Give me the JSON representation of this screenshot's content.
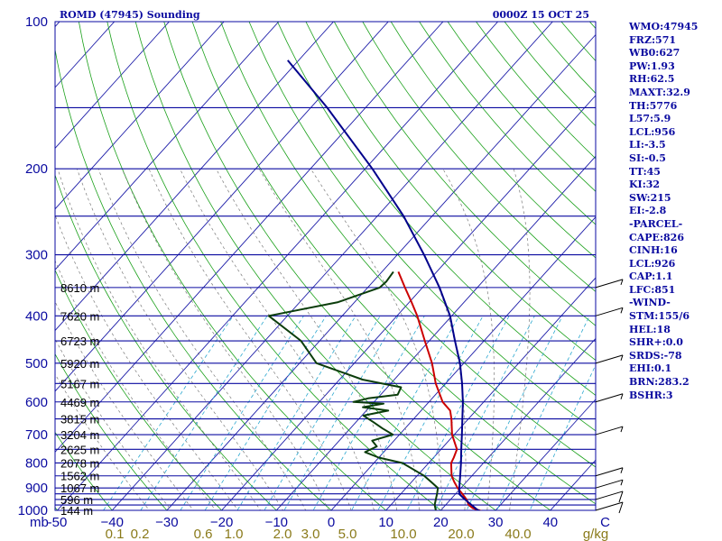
{
  "title": {
    "station": "ROMD (47945) Sounding",
    "time": "0000Z 15 OCT 25"
  },
  "indices": [
    "WMO:47945",
    "FRZ:571",
    "WB0:627",
    "PW:1.93",
    "RH:62.5",
    "MAXT:32.9",
    "TH:5776",
    "L57:5.9",
    "LCL:956",
    "LI:-3.5",
    "SI:-0.5",
    "TT:45",
    "KI:32",
    "SW:215",
    "EI:-2.8",
    "-PARCEL-",
    "CAPE:826",
    "CINH:16",
    "LCL:926",
    "CAP:1.1",
    "LFC:851",
    "-WIND-",
    "STM:155/6",
    "HEL:18",
    "SHR+:0.0",
    "SRDS:-78",
    "EHI:0.1",
    "BRN:283.2",
    "BSHR:3"
  ],
  "chart_data": {
    "type": "line",
    "subtype": "skew-T log-P sounding",
    "pressure_range_hpa": [
      1000,
      100
    ],
    "temperature_range_c": [
      -50,
      50
    ],
    "pressure_ticks": [
      {
        "p": 100,
        "label": "100"
      },
      {
        "p": 200,
        "label": "200"
      },
      {
        "p": 300,
        "label": "300"
      },
      {
        "p": 400,
        "label": "400"
      },
      {
        "p": 500,
        "label": "500"
      },
      {
        "p": 600,
        "label": "600"
      },
      {
        "p": 700,
        "label": "700"
      },
      {
        "p": 800,
        "label": "800"
      },
      {
        "p": 900,
        "label": "900"
      },
      {
        "p": 1000,
        "label": "1000"
      }
    ],
    "isobar_lines_hpa": [
      100,
      150,
      200,
      250,
      300,
      350,
      400,
      450,
      500,
      550,
      600,
      650,
      700,
      750,
      800,
      850,
      900,
      925,
      950,
      975,
      1000
    ],
    "temperature_ticks": [
      {
        "t": -50,
        "label": "-50"
      },
      {
        "t": -40,
        "label": "−40"
      },
      {
        "t": -30,
        "label": "−30"
      },
      {
        "t": -20,
        "label": "−20"
      },
      {
        "t": -10,
        "label": "−10"
      },
      {
        "t": 0,
        "label": "0"
      },
      {
        "t": 10,
        "label": "10"
      },
      {
        "t": 20,
        "label": "20"
      },
      {
        "t": 30,
        "label": "30"
      },
      {
        "t": 40,
        "label": "40"
      },
      {
        "t": 50,
        "label": "C"
      }
    ],
    "xlabel_left": "mb",
    "mixing_ratio_labels": [
      "0.1",
      "0.2",
      "0.6",
      "1.0",
      "2.0",
      "3.0",
      "5.0",
      "10.0",
      "20.0",
      "40.0"
    ],
    "mixing_ratio_unit": "g/kg",
    "altitude_labels": [
      {
        "p": 1000,
        "label": "144 m"
      },
      {
        "p": 950,
        "label": "596 m"
      },
      {
        "p": 900,
        "label": "1067 m"
      },
      {
        "p": 850,
        "label": "1562 m"
      },
      {
        "p": 800,
        "label": "2078 m"
      },
      {
        "p": 750,
        "label": "2625 m"
      },
      {
        "p": 700,
        "label": "3204 m"
      },
      {
        "p": 650,
        "label": "3815 m"
      },
      {
        "p": 600,
        "label": "4469 m"
      },
      {
        "p": 550,
        "label": "5167 m"
      },
      {
        "p": 500,
        "label": "5920 m"
      },
      {
        "p": 450,
        "label": "6723 m"
      },
      {
        "p": 400,
        "label": "7620 m"
      },
      {
        "p": 350,
        "label": "8610 m"
      }
    ],
    "series": [
      {
        "name": "temperature",
        "color": "#cc0000",
        "points": [
          [
            1010,
            28.5
          ],
          [
            1000,
            27.0
          ],
          [
            990,
            25.5
          ],
          [
            975,
            24.2
          ],
          [
            950,
            22.9
          ],
          [
            925,
            21.2
          ],
          [
            900,
            19.4
          ],
          [
            875,
            17.8
          ],
          [
            850,
            16.3
          ],
          [
            800,
            14.1
          ],
          [
            780,
            13.7
          ],
          [
            750,
            12.9
          ],
          [
            700,
            9.6
          ],
          [
            650,
            6.9
          ],
          [
            625,
            5.3
          ],
          [
            600,
            2.5
          ],
          [
            575,
            0.4
          ],
          [
            550,
            -1.8
          ],
          [
            500,
            -5.8
          ],
          [
            450,
            -10.8
          ],
          [
            400,
            -16.3
          ],
          [
            375,
            -19.6
          ],
          [
            350,
            -23.2
          ],
          [
            325,
            -27.0
          ]
        ]
      },
      {
        "name": "dewpoint",
        "color": "#0b3d0b",
        "points": [
          [
            1000,
            19.1
          ],
          [
            975,
            18.0
          ],
          [
            950,
            17.3
          ],
          [
            925,
            16.6
          ],
          [
            900,
            15.8
          ],
          [
            875,
            13.6
          ],
          [
            850,
            11.3
          ],
          [
            800,
            5.2
          ],
          [
            780,
            0.0
          ],
          [
            760,
            -3.4
          ],
          [
            740,
            -2.2
          ],
          [
            720,
            -4.0
          ],
          [
            700,
            -1.2
          ],
          [
            680,
            -4.1
          ],
          [
            660,
            -6.8
          ],
          [
            640,
            -9.7
          ],
          [
            625,
            -6.0
          ],
          [
            615,
            -11.2
          ],
          [
            605,
            -8.0
          ],
          [
            600,
            -13.8
          ],
          [
            590,
            -11.7
          ],
          [
            580,
            -6.9
          ],
          [
            560,
            -7.5
          ],
          [
            540,
            -15.8
          ],
          [
            500,
            -26.9
          ],
          [
            450,
            -33.4
          ],
          [
            400,
            -43.4
          ],
          [
            375,
            -33.0
          ],
          [
            350,
            -27.8
          ],
          [
            340,
            -27.6
          ],
          [
            325,
            -27.9
          ]
        ]
      },
      {
        "name": "parcel",
        "color": "#00008b",
        "points": [
          [
            1010,
            28.5
          ],
          [
            1000,
            26.8
          ],
          [
            950,
            22.6
          ],
          [
            926,
            20.7
          ],
          [
            900,
            19.7
          ],
          [
            851,
            17.9
          ],
          [
            800,
            15.9
          ],
          [
            750,
            13.7
          ],
          [
            700,
            11.4
          ],
          [
            650,
            8.9
          ],
          [
            600,
            6.2
          ],
          [
            550,
            3.0
          ],
          [
            500,
            -0.7
          ],
          [
            450,
            -5.3
          ],
          [
            400,
            -10.3
          ],
          [
            350,
            -16.9
          ],
          [
            300,
            -25.1
          ],
          [
            250,
            -35.2
          ],
          [
            200,
            -48.7
          ],
          [
            150,
            -67.0
          ],
          [
            120,
            -82.0
          ]
        ]
      }
    ],
    "wind_barbs": [
      {
        "p": 1000,
        "speed_kt": 10
      },
      {
        "p": 950,
        "speed_kt": 10
      },
      {
        "p": 900,
        "speed_kt": 5
      },
      {
        "p": 850,
        "speed_kt": 5
      },
      {
        "p": 700,
        "speed_kt": 5
      },
      {
        "p": 600,
        "speed_kt": 5
      },
      {
        "p": 500,
        "speed_kt": 5
      },
      {
        "p": 400,
        "speed_kt": 5
      },
      {
        "p": 350,
        "speed_kt": 5
      }
    ]
  }
}
